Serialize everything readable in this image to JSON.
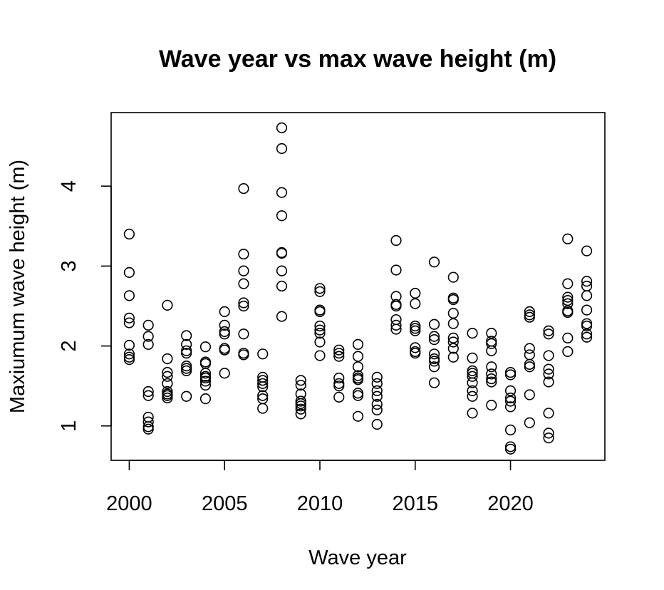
{
  "chart_data": {
    "type": "scatter",
    "title": "Wave year vs max wave height (m)",
    "xlabel": "Wave year",
    "ylabel": "Maxiumum wave height (m)",
    "xticks": [
      2000,
      2005,
      2010,
      2015,
      2020
    ],
    "yticks": [
      1,
      2,
      3,
      4
    ],
    "xlim": [
      1999.05,
      2024.95
    ],
    "ylim": [
      0.57,
      4.92
    ],
    "grid": false,
    "legend": "none",
    "points": [
      {
        "x": 2000,
        "y": 3.4
      },
      {
        "x": 2000,
        "y": 2.92
      },
      {
        "x": 2000,
        "y": 2.63
      },
      {
        "x": 2000,
        "y": 2.35
      },
      {
        "x": 2000,
        "y": 2.29
      },
      {
        "x": 2000,
        "y": 2.01
      },
      {
        "x": 2000,
        "y": 1.9
      },
      {
        "x": 2000,
        "y": 1.86
      },
      {
        "x": 2000,
        "y": 1.83
      },
      {
        "x": 2001,
        "y": 2.26
      },
      {
        "x": 2001,
        "y": 2.12
      },
      {
        "x": 2001,
        "y": 2.02
      },
      {
        "x": 2001,
        "y": 1.43
      },
      {
        "x": 2001,
        "y": 1.38
      },
      {
        "x": 2001,
        "y": 1.11
      },
      {
        "x": 2001,
        "y": 1.05
      },
      {
        "x": 2001,
        "y": 0.99
      },
      {
        "x": 2001,
        "y": 0.96
      },
      {
        "x": 2002,
        "y": 2.51
      },
      {
        "x": 2002,
        "y": 1.84
      },
      {
        "x": 2002,
        "y": 1.67
      },
      {
        "x": 2002,
        "y": 1.62
      },
      {
        "x": 2002,
        "y": 1.53
      },
      {
        "x": 2002,
        "y": 1.43
      },
      {
        "x": 2002,
        "y": 1.4
      },
      {
        "x": 2002,
        "y": 1.38
      },
      {
        "x": 2002,
        "y": 1.35
      },
      {
        "x": 2003,
        "y": 2.13
      },
      {
        "x": 2003,
        "y": 2.02
      },
      {
        "x": 2003,
        "y": 1.94
      },
      {
        "x": 2003,
        "y": 1.91
      },
      {
        "x": 2003,
        "y": 1.75
      },
      {
        "x": 2003,
        "y": 1.72
      },
      {
        "x": 2003,
        "y": 1.69
      },
      {
        "x": 2003,
        "y": 1.37
      },
      {
        "x": 2004,
        "y": 1.99
      },
      {
        "x": 2004,
        "y": 1.8
      },
      {
        "x": 2004,
        "y": 1.78
      },
      {
        "x": 2004,
        "y": 1.66
      },
      {
        "x": 2004,
        "y": 1.62
      },
      {
        "x": 2004,
        "y": 1.6
      },
      {
        "x": 2004,
        "y": 1.56
      },
      {
        "x": 2004,
        "y": 1.51
      },
      {
        "x": 2004,
        "y": 1.34
      },
      {
        "x": 2005,
        "y": 2.43
      },
      {
        "x": 2005,
        "y": 2.26
      },
      {
        "x": 2005,
        "y": 2.18
      },
      {
        "x": 2005,
        "y": 2.15
      },
      {
        "x": 2005,
        "y": 1.97
      },
      {
        "x": 2005,
        "y": 1.95
      },
      {
        "x": 2005,
        "y": 1.66
      },
      {
        "x": 2006,
        "y": 3.97
      },
      {
        "x": 2006,
        "y": 3.15
      },
      {
        "x": 2006,
        "y": 2.94
      },
      {
        "x": 2006,
        "y": 2.78
      },
      {
        "x": 2006,
        "y": 2.54
      },
      {
        "x": 2006,
        "y": 2.5
      },
      {
        "x": 2006,
        "y": 2.15
      },
      {
        "x": 2006,
        "y": 1.91
      },
      {
        "x": 2006,
        "y": 1.89
      },
      {
        "x": 2007,
        "y": 1.9
      },
      {
        "x": 2007,
        "y": 1.61
      },
      {
        "x": 2007,
        "y": 1.57
      },
      {
        "x": 2007,
        "y": 1.53
      },
      {
        "x": 2007,
        "y": 1.49
      },
      {
        "x": 2007,
        "y": 1.38
      },
      {
        "x": 2007,
        "y": 1.34
      },
      {
        "x": 2007,
        "y": 1.22
      },
      {
        "x": 2008,
        "y": 4.73
      },
      {
        "x": 2008,
        "y": 4.47
      },
      {
        "x": 2008,
        "y": 3.92
      },
      {
        "x": 2008,
        "y": 3.63
      },
      {
        "x": 2008,
        "y": 3.17
      },
      {
        "x": 2008,
        "y": 3.16
      },
      {
        "x": 2008,
        "y": 2.94
      },
      {
        "x": 2008,
        "y": 2.75
      },
      {
        "x": 2008,
        "y": 2.37
      },
      {
        "x": 2009,
        "y": 1.57
      },
      {
        "x": 2009,
        "y": 1.51
      },
      {
        "x": 2009,
        "y": 1.4
      },
      {
        "x": 2009,
        "y": 1.31
      },
      {
        "x": 2009,
        "y": 1.28
      },
      {
        "x": 2009,
        "y": 1.25
      },
      {
        "x": 2009,
        "y": 1.21
      },
      {
        "x": 2009,
        "y": 1.15
      },
      {
        "x": 2010,
        "y": 2.72
      },
      {
        "x": 2010,
        "y": 2.68
      },
      {
        "x": 2010,
        "y": 2.45
      },
      {
        "x": 2010,
        "y": 2.43
      },
      {
        "x": 2010,
        "y": 2.25
      },
      {
        "x": 2010,
        "y": 2.2
      },
      {
        "x": 2010,
        "y": 2.16
      },
      {
        "x": 2010,
        "y": 2.05
      },
      {
        "x": 2010,
        "y": 1.88
      },
      {
        "x": 2011,
        "y": 1.95
      },
      {
        "x": 2011,
        "y": 1.91
      },
      {
        "x": 2011,
        "y": 1.87
      },
      {
        "x": 2011,
        "y": 1.6
      },
      {
        "x": 2011,
        "y": 1.53
      },
      {
        "x": 2011,
        "y": 1.5
      },
      {
        "x": 2011,
        "y": 1.36
      },
      {
        "x": 2012,
        "y": 2.02
      },
      {
        "x": 2012,
        "y": 1.87
      },
      {
        "x": 2012,
        "y": 1.74
      },
      {
        "x": 2012,
        "y": 1.63
      },
      {
        "x": 2012,
        "y": 1.6
      },
      {
        "x": 2012,
        "y": 1.58
      },
      {
        "x": 2012,
        "y": 1.41
      },
      {
        "x": 2012,
        "y": 1.38
      },
      {
        "x": 2012,
        "y": 1.12
      },
      {
        "x": 2013,
        "y": 1.61
      },
      {
        "x": 2013,
        "y": 1.53
      },
      {
        "x": 2013,
        "y": 1.44
      },
      {
        "x": 2013,
        "y": 1.37
      },
      {
        "x": 2013,
        "y": 1.27
      },
      {
        "x": 2013,
        "y": 1.2
      },
      {
        "x": 2013,
        "y": 1.02
      },
      {
        "x": 2014,
        "y": 3.32
      },
      {
        "x": 2014,
        "y": 2.95
      },
      {
        "x": 2014,
        "y": 2.62
      },
      {
        "x": 2014,
        "y": 2.52
      },
      {
        "x": 2014,
        "y": 2.5
      },
      {
        "x": 2014,
        "y": 2.33
      },
      {
        "x": 2014,
        "y": 2.26
      },
      {
        "x": 2014,
        "y": 2.21
      },
      {
        "x": 2015,
        "y": 2.66
      },
      {
        "x": 2015,
        "y": 2.53
      },
      {
        "x": 2015,
        "y": 2.25
      },
      {
        "x": 2015,
        "y": 2.22
      },
      {
        "x": 2015,
        "y": 2.19
      },
      {
        "x": 2015,
        "y": 1.98
      },
      {
        "x": 2015,
        "y": 1.93
      },
      {
        "x": 2015,
        "y": 1.91
      },
      {
        "x": 2016,
        "y": 3.05
      },
      {
        "x": 2016,
        "y": 2.27
      },
      {
        "x": 2016,
        "y": 2.12
      },
      {
        "x": 2016,
        "y": 2.08
      },
      {
        "x": 2016,
        "y": 1.9
      },
      {
        "x": 2016,
        "y": 1.84
      },
      {
        "x": 2016,
        "y": 1.81
      },
      {
        "x": 2016,
        "y": 1.74
      },
      {
        "x": 2016,
        "y": 1.54
      },
      {
        "x": 2017,
        "y": 2.86
      },
      {
        "x": 2017,
        "y": 2.6
      },
      {
        "x": 2017,
        "y": 2.58
      },
      {
        "x": 2017,
        "y": 2.41
      },
      {
        "x": 2017,
        "y": 2.28
      },
      {
        "x": 2017,
        "y": 2.1
      },
      {
        "x": 2017,
        "y": 2.05
      },
      {
        "x": 2017,
        "y": 1.97
      },
      {
        "x": 2017,
        "y": 1.86
      },
      {
        "x": 2018,
        "y": 2.16
      },
      {
        "x": 2018,
        "y": 1.85
      },
      {
        "x": 2018,
        "y": 1.69
      },
      {
        "x": 2018,
        "y": 1.66
      },
      {
        "x": 2018,
        "y": 1.62
      },
      {
        "x": 2018,
        "y": 1.54
      },
      {
        "x": 2018,
        "y": 1.44
      },
      {
        "x": 2018,
        "y": 1.37
      },
      {
        "x": 2018,
        "y": 1.16
      },
      {
        "x": 2019,
        "y": 2.16
      },
      {
        "x": 2019,
        "y": 2.06
      },
      {
        "x": 2019,
        "y": 2.03
      },
      {
        "x": 2019,
        "y": 1.94
      },
      {
        "x": 2019,
        "y": 1.74
      },
      {
        "x": 2019,
        "y": 1.65
      },
      {
        "x": 2019,
        "y": 1.59
      },
      {
        "x": 2019,
        "y": 1.55
      },
      {
        "x": 2019,
        "y": 1.26
      },
      {
        "x": 2020,
        "y": 1.67
      },
      {
        "x": 2020,
        "y": 1.64
      },
      {
        "x": 2020,
        "y": 1.44
      },
      {
        "x": 2020,
        "y": 1.35
      },
      {
        "x": 2020,
        "y": 1.31
      },
      {
        "x": 2020,
        "y": 1.24
      },
      {
        "x": 2020,
        "y": 0.95
      },
      {
        "x": 2020,
        "y": 0.74
      },
      {
        "x": 2020,
        "y": 0.71
      },
      {
        "x": 2021,
        "y": 2.43
      },
      {
        "x": 2021,
        "y": 2.39
      },
      {
        "x": 2021,
        "y": 2.36
      },
      {
        "x": 2021,
        "y": 1.97
      },
      {
        "x": 2021,
        "y": 1.89
      },
      {
        "x": 2021,
        "y": 1.77
      },
      {
        "x": 2021,
        "y": 1.74
      },
      {
        "x": 2021,
        "y": 1.39
      },
      {
        "x": 2021,
        "y": 1.04
      },
      {
        "x": 2022,
        "y": 2.19
      },
      {
        "x": 2022,
        "y": 2.15
      },
      {
        "x": 2022,
        "y": 1.88
      },
      {
        "x": 2022,
        "y": 1.71
      },
      {
        "x": 2022,
        "y": 1.65
      },
      {
        "x": 2022,
        "y": 1.55
      },
      {
        "x": 2022,
        "y": 1.16
      },
      {
        "x": 2022,
        "y": 0.91
      },
      {
        "x": 2022,
        "y": 0.85
      },
      {
        "x": 2023,
        "y": 3.34
      },
      {
        "x": 2023,
        "y": 2.78
      },
      {
        "x": 2023,
        "y": 2.61
      },
      {
        "x": 2023,
        "y": 2.57
      },
      {
        "x": 2023,
        "y": 2.53
      },
      {
        "x": 2023,
        "y": 2.44
      },
      {
        "x": 2023,
        "y": 2.42
      },
      {
        "x": 2023,
        "y": 2.1
      },
      {
        "x": 2023,
        "y": 1.93
      },
      {
        "x": 2024,
        "y": 3.19
      },
      {
        "x": 2024,
        "y": 2.81
      },
      {
        "x": 2024,
        "y": 2.75
      },
      {
        "x": 2024,
        "y": 2.63
      },
      {
        "x": 2024,
        "y": 2.45
      },
      {
        "x": 2024,
        "y": 2.28
      },
      {
        "x": 2024,
        "y": 2.25
      },
      {
        "x": 2024,
        "y": 2.15
      },
      {
        "x": 2024,
        "y": 2.11
      }
    ]
  }
}
